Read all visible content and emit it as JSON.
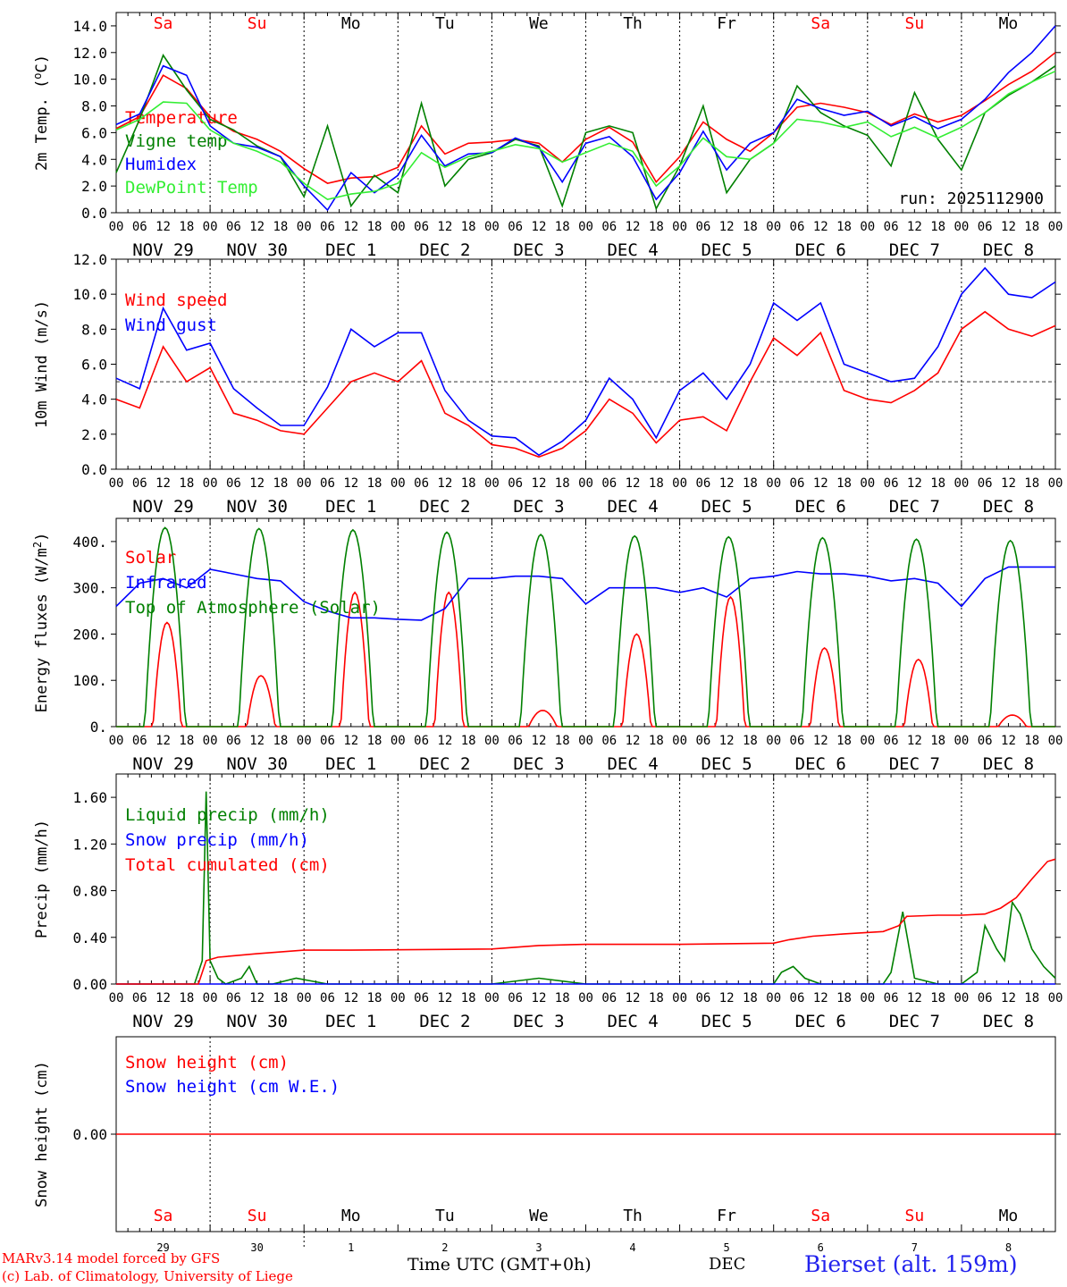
{
  "footer": {
    "model_line": "MARv3.14 model forced by GFS",
    "copyright_line": "(c) Lab. of Climatology, University of Liege",
    "time_axis_label": "Time UTC (GMT+0h)",
    "month_label": "DEC",
    "station": "Bierset (alt. 159m)"
  },
  "colors": {
    "red": "#ff0000",
    "blue": "#0000ff",
    "green": "#008000",
    "lightgreen": "#33ee33",
    "weekend": "#ff0000",
    "weekday": "#000000",
    "station": "#2222ee"
  },
  "days": [
    {
      "dow": "Sa",
      "date": "NOV 29",
      "num": "29",
      "weekend": true
    },
    {
      "dow": "Su",
      "date": "NOV 30",
      "num": "30",
      "weekend": true
    },
    {
      "dow": "Mo",
      "date": "DEC  1",
      "num": "1",
      "weekend": false
    },
    {
      "dow": "Tu",
      "date": "DEC  2",
      "num": "2",
      "weekend": false
    },
    {
      "dow": "We",
      "date": "DEC  3",
      "num": "3",
      "weekend": false
    },
    {
      "dow": "Th",
      "date": "DEC  4",
      "num": "4",
      "weekend": false
    },
    {
      "dow": "Fr",
      "date": "DEC  5",
      "num": "5",
      "weekend": false
    },
    {
      "dow": "Sa",
      "date": "DEC  6",
      "num": "6",
      "weekend": true
    },
    {
      "dow": "Su",
      "date": "DEC  7",
      "num": "7",
      "weekend": true
    },
    {
      "dow": "Mo",
      "date": "DEC  8",
      "num": "8",
      "weekend": false
    }
  ],
  "hour_ticks": [
    "00",
    "06",
    "12",
    "18"
  ],
  "final_hour_tick": "00",
  "chart_data": [
    {
      "type": "line",
      "ylabel": "2m Temp. (oC)",
      "ylim": [
        0,
        15
      ],
      "yticks": [
        0,
        2,
        4,
        6,
        8,
        10,
        12,
        14
      ],
      "ytick_labels": [
        "0.0",
        "2.0",
        "4.0",
        "6.0",
        "8.0",
        "10.0",
        "12.0",
        "14.0"
      ],
      "x_unit": "hours since NOV 29 00 UTC",
      "annotation": "run: 2025112900",
      "series": [
        {
          "name": "Temperature",
          "color": "#ff0000",
          "x": [
            0,
            6,
            12,
            18,
            24,
            30,
            36,
            42,
            48,
            54,
            60,
            66,
            72,
            78,
            84,
            90,
            96,
            102,
            108,
            114,
            120,
            126,
            132,
            138,
            144,
            150,
            156,
            162,
            168,
            174,
            180,
            186,
            192,
            198,
            204,
            210,
            216,
            222,
            228,
            234,
            240
          ],
          "values": [
            6.3,
            7.2,
            10.3,
            9.3,
            7.2,
            6.1,
            5.5,
            4.6,
            3.3,
            2.2,
            2.6,
            2.7,
            3.4,
            6.5,
            4.4,
            5.2,
            5.3,
            5.5,
            5.2,
            3.8,
            5.5,
            6.4,
            5.3,
            2.3,
            4.2,
            6.8,
            5.5,
            4.6,
            6.0,
            7.9,
            8.2,
            7.9,
            7.5,
            6.6,
            7.4,
            6.8,
            7.3,
            8.4,
            9.6,
            10.6,
            12.0
          ]
        },
        {
          "name": "Vigne temp",
          "color": "#008000",
          "x": [
            0,
            6,
            12,
            18,
            24,
            30,
            36,
            42,
            48,
            54,
            60,
            66,
            72,
            78,
            84,
            90,
            96,
            102,
            108,
            114,
            120,
            126,
            132,
            138,
            144,
            150,
            156,
            162,
            168,
            174,
            180,
            186,
            192,
            198,
            204,
            210,
            216,
            222,
            228,
            234,
            240
          ],
          "values": [
            3.0,
            7.0,
            11.8,
            9.2,
            7.0,
            6.2,
            5.0,
            4.2,
            1.2,
            6.5,
            0.5,
            2.8,
            1.5,
            8.2,
            2.0,
            4.0,
            4.5,
            5.5,
            5.0,
            0.5,
            6.0,
            6.5,
            6.0,
            0.3,
            3.5,
            8.0,
            1.5,
            4.0,
            5.2,
            9.5,
            7.5,
            6.5,
            5.8,
            3.5,
            9.0,
            5.5,
            3.2,
            7.5,
            8.8,
            9.8,
            11.0
          ]
        },
        {
          "name": "Humidex",
          "color": "#0000ff",
          "x": [
            0,
            6,
            12,
            18,
            24,
            30,
            36,
            42,
            48,
            54,
            60,
            66,
            72,
            78,
            84,
            90,
            96,
            102,
            108,
            114,
            120,
            126,
            132,
            138,
            144,
            150,
            156,
            162,
            168,
            174,
            180,
            186,
            192,
            198,
            204,
            210,
            216,
            222,
            228,
            234,
            240
          ],
          "values": [
            6.6,
            7.4,
            11.0,
            10.3,
            6.5,
            5.2,
            4.9,
            4.2,
            2.0,
            0.2,
            3.0,
            1.5,
            2.8,
            5.8,
            3.5,
            4.4,
            4.5,
            5.6,
            4.9,
            2.3,
            5.2,
            5.7,
            4.2,
            1.0,
            3.0,
            6.1,
            3.2,
            5.2,
            6.0,
            8.5,
            7.8,
            7.3,
            7.6,
            6.5,
            7.2,
            6.3,
            7.0,
            8.5,
            10.5,
            12.0,
            14.0
          ]
        },
        {
          "name": "DewPoint Temp",
          "color": "#33ee33",
          "x": [
            0,
            6,
            12,
            18,
            24,
            30,
            36,
            42,
            48,
            54,
            60,
            66,
            72,
            78,
            84,
            90,
            96,
            102,
            108,
            114,
            120,
            126,
            132,
            138,
            144,
            150,
            156,
            162,
            168,
            174,
            180,
            186,
            192,
            198,
            204,
            210,
            216,
            222,
            228,
            234,
            240
          ],
          "values": [
            6.2,
            7.0,
            8.3,
            8.2,
            6.2,
            5.2,
            4.6,
            3.8,
            2.2,
            1.0,
            1.4,
            1.6,
            2.2,
            4.5,
            3.4,
            4.2,
            4.6,
            5.1,
            4.8,
            3.8,
            4.5,
            5.2,
            4.6,
            2.0,
            3.5,
            5.6,
            4.2,
            4.0,
            5.2,
            7.0,
            6.8,
            6.4,
            6.8,
            5.7,
            6.4,
            5.6,
            6.4,
            7.5,
            8.9,
            9.8,
            10.6
          ]
        }
      ]
    },
    {
      "type": "line",
      "ylabel": "10m Wind (m/s)",
      "ylim": [
        0,
        12
      ],
      "yticks": [
        0,
        2,
        4,
        6,
        8,
        10,
        12
      ],
      "ytick_labels": [
        "0.0",
        "2.0",
        "4.0",
        "6.0",
        "8.0",
        "10.0",
        "12.0"
      ],
      "x_unit": "hours since NOV 29 00 UTC",
      "reference_line": 5,
      "series": [
        {
          "name": "Wind speed",
          "color": "#ff0000",
          "x": [
            0,
            6,
            12,
            18,
            24,
            30,
            36,
            42,
            48,
            54,
            60,
            66,
            72,
            78,
            84,
            90,
            96,
            102,
            108,
            114,
            120,
            126,
            132,
            138,
            144,
            150,
            156,
            162,
            168,
            174,
            180,
            186,
            192,
            198,
            204,
            210,
            216,
            222,
            228,
            234,
            240
          ],
          "values": [
            4.0,
            3.5,
            7.0,
            5.0,
            5.8,
            3.2,
            2.8,
            2.2,
            2.0,
            3.5,
            5.0,
            5.5,
            5.0,
            6.2,
            3.2,
            2.5,
            1.4,
            1.2,
            0.7,
            1.2,
            2.2,
            4.0,
            3.2,
            1.5,
            2.8,
            3.0,
            2.2,
            5.0,
            7.5,
            6.5,
            7.8,
            4.5,
            4.0,
            3.8,
            4.5,
            5.5,
            8.0,
            9.0,
            8.0,
            7.6,
            8.2
          ]
        },
        {
          "name": "Wind gust",
          "color": "#0000ff",
          "x": [
            0,
            6,
            12,
            18,
            24,
            30,
            36,
            42,
            48,
            54,
            60,
            66,
            72,
            78,
            84,
            90,
            96,
            102,
            108,
            114,
            120,
            126,
            132,
            138,
            144,
            150,
            156,
            162,
            168,
            174,
            180,
            186,
            192,
            198,
            204,
            210,
            216,
            222,
            228,
            234,
            240
          ],
          "values": [
            5.2,
            4.6,
            9.2,
            6.8,
            7.2,
            4.6,
            3.5,
            2.5,
            2.5,
            4.7,
            8.0,
            7.0,
            7.8,
            7.8,
            4.5,
            2.8,
            1.9,
            1.8,
            0.8,
            1.6,
            2.8,
            5.2,
            4.0,
            1.8,
            4.5,
            5.5,
            4.0,
            6.0,
            9.5,
            8.5,
            9.5,
            6.0,
            5.5,
            5.0,
            5.2,
            7.0,
            10.0,
            11.5,
            10.0,
            9.8,
            10.7
          ]
        }
      ]
    },
    {
      "type": "line",
      "ylabel": "Energy fluxes (W/m2)",
      "ylim": [
        0,
        450
      ],
      "yticks": [
        0,
        100,
        200,
        300,
        400
      ],
      "ytick_labels": [
        "0.",
        "100.",
        "200.",
        "300.",
        "400."
      ],
      "x_unit": "hours since NOV 29 00 UTC",
      "series": [
        {
          "name": "Solar",
          "color": "#ff0000",
          "peak_hours": [
            13,
            37,
            61,
            85,
            109,
            133,
            157,
            181,
            205,
            229
          ],
          "peaks": [
            225,
            110,
            290,
            290,
            35,
            200,
            280,
            170,
            145,
            25
          ]
        },
        {
          "name": "Infrared",
          "color": "#0000ff",
          "x": [
            0,
            6,
            12,
            18,
            24,
            30,
            36,
            42,
            48,
            54,
            60,
            66,
            72,
            78,
            84,
            90,
            96,
            102,
            108,
            114,
            120,
            126,
            132,
            138,
            144,
            150,
            156,
            162,
            168,
            174,
            180,
            186,
            192,
            198,
            204,
            210,
            216,
            222,
            228,
            234,
            240
          ],
          "values": [
            260,
            310,
            320,
            300,
            340,
            330,
            320,
            315,
            270,
            250,
            235,
            235,
            232,
            230,
            255,
            320,
            320,
            325,
            325,
            320,
            265,
            300,
            300,
            300,
            290,
            300,
            280,
            320,
            325,
            335,
            330,
            330,
            325,
            315,
            320,
            310,
            260,
            320,
            345,
            345,
            345
          ]
        },
        {
          "name": "Top of Atmosphere (Solar)",
          "color": "#008000",
          "peak_hours": [
            12.5,
            36.5,
            60.5,
            84.5,
            108.5,
            132.5,
            156.5,
            180.5,
            204.5,
            228.5
          ],
          "peaks": [
            430,
            428,
            425,
            420,
            415,
            412,
            410,
            408,
            405,
            402
          ]
        }
      ]
    },
    {
      "type": "line",
      "ylabel": "Precip (mm/h)",
      "ylim": [
        0,
        1.8
      ],
      "yticks": [
        0,
        0.4,
        0.8,
        1.2,
        1.6
      ],
      "ytick_labels": [
        "0.00",
        "0.40",
        "0.80",
        "1.20",
        "1.60"
      ],
      "x_unit": "hours since NOV 29 00 UTC",
      "series": [
        {
          "name": "Liquid precip (mm/h)",
          "color": "#008000",
          "x": [
            0,
            20,
            22,
            23,
            24,
            26,
            28,
            32,
            34,
            36,
            40,
            46,
            54,
            96,
            108,
            120,
            168,
            170,
            173,
            176,
            180,
            196,
            198,
            201,
            204,
            210,
            216,
            220,
            222,
            225,
            227,
            229,
            231,
            234,
            237,
            240
          ],
          "values": [
            0,
            0,
            0.2,
            1.65,
            0.2,
            0.05,
            0,
            0.05,
            0.15,
            0,
            0,
            0.05,
            0,
            0,
            0.05,
            0,
            0,
            0.1,
            0.15,
            0.05,
            0,
            0,
            0.1,
            0.62,
            0.05,
            0,
            0,
            0.1,
            0.5,
            0.3,
            0.2,
            0.7,
            0.6,
            0.3,
            0.15,
            0.05
          ]
        },
        {
          "name": "Snow precip (mm/h)",
          "color": "#0000ff",
          "x": [
            0,
            240
          ],
          "values": [
            0,
            0
          ]
        },
        {
          "name": "Total cumulated (cm)",
          "color": "#ff0000",
          "x": [
            0,
            21,
            23,
            26,
            36,
            48,
            60,
            96,
            108,
            120,
            144,
            168,
            172,
            178,
            186,
            196,
            200,
            202,
            210,
            216,
            222,
            226,
            230,
            234,
            238,
            240
          ],
          "values": [
            0,
            0,
            0.2,
            0.23,
            0.26,
            0.29,
            0.29,
            0.3,
            0.33,
            0.34,
            0.34,
            0.35,
            0.38,
            0.41,
            0.43,
            0.45,
            0.5,
            0.58,
            0.59,
            0.59,
            0.6,
            0.65,
            0.74,
            0.9,
            1.05,
            1.07
          ]
        }
      ]
    },
    {
      "type": "line",
      "ylabel": "Snow height (cm)",
      "ylim": [
        -1,
        1
      ],
      "yticks": [
        0
      ],
      "ytick_labels": [
        "0.00"
      ],
      "x_unit": "hours since NOV 29 00 UTC",
      "series": [
        {
          "name": "Snow height (cm)",
          "color": "#ff0000",
          "x": [
            0,
            240
          ],
          "values": [
            0,
            0
          ]
        },
        {
          "name": "Snow height (cm W.E.)",
          "color": "#0000ff",
          "x": [],
          "values": []
        }
      ]
    }
  ]
}
